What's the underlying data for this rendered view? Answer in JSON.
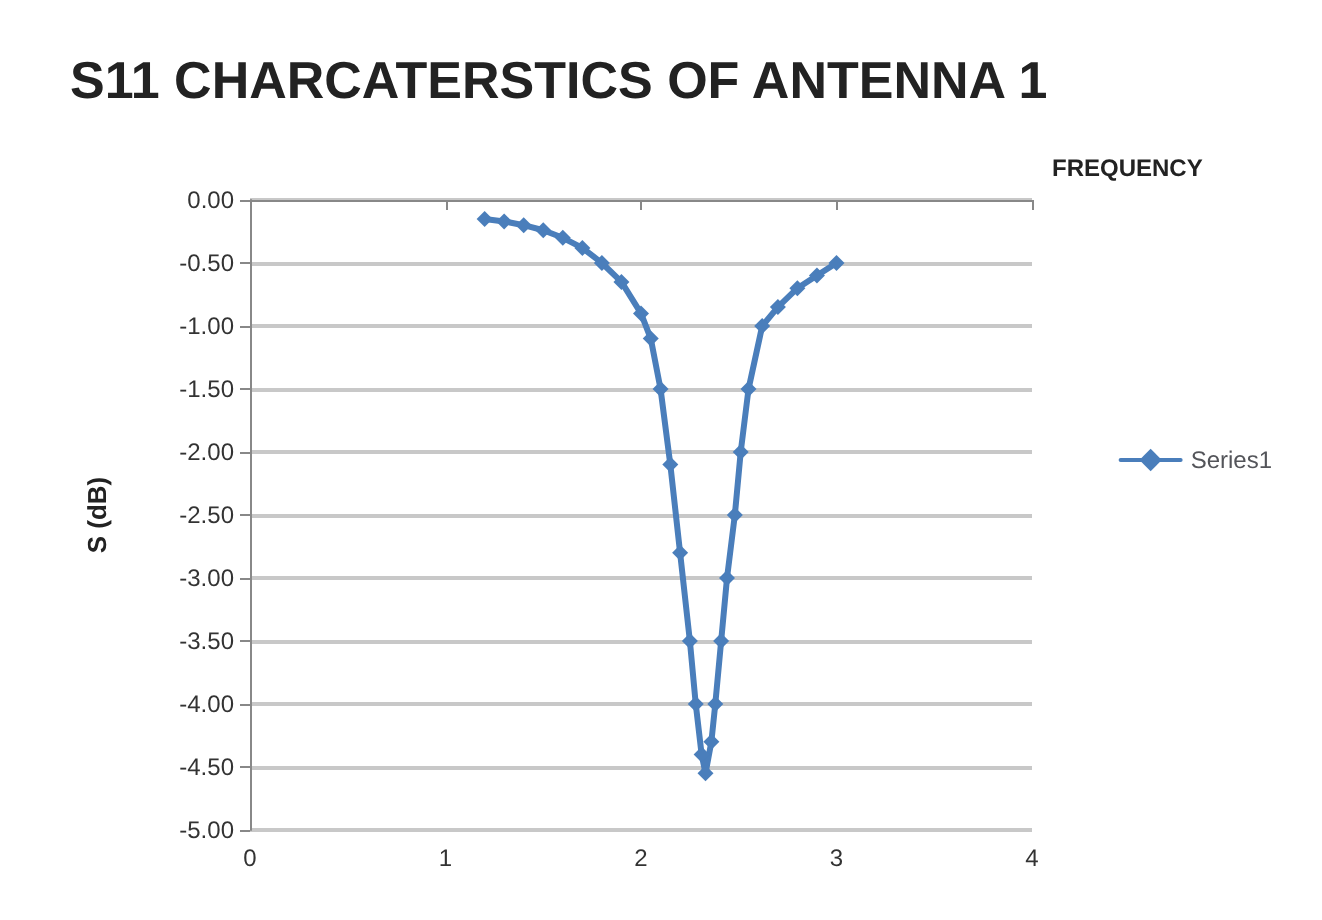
{
  "chart_data": {
    "type": "line",
    "title": "S11 CHARCATERSTICS OF ANTENNA 1",
    "xlabel": "FREQUENCY",
    "ylabel": "S (dB)",
    "series": [
      {
        "name": "Series1",
        "color": "#4a7ebb",
        "x": [
          1.2,
          1.3,
          1.4,
          1.5,
          1.6,
          1.7,
          1.8,
          1.9,
          2.0,
          2.05,
          2.1,
          2.15,
          2.2,
          2.25,
          2.28,
          2.31,
          2.33,
          2.36,
          2.38,
          2.41,
          2.44,
          2.48,
          2.51,
          2.55,
          2.62,
          2.7,
          2.8,
          2.9,
          3.0
        ],
        "values": [
          -0.15,
          -0.17,
          -0.2,
          -0.24,
          -0.3,
          -0.38,
          -0.5,
          -0.65,
          -0.9,
          -1.1,
          -1.5,
          -2.1,
          -2.8,
          -3.5,
          -4.0,
          -4.4,
          -4.55,
          -4.3,
          -4.0,
          -3.5,
          -3.0,
          -2.5,
          -2.0,
          -1.5,
          -1.0,
          -0.85,
          -0.7,
          -0.6,
          -0.5
        ]
      }
    ],
    "xlim": [
      0,
      4
    ],
    "xticks": [
      0,
      1,
      2,
      3,
      4
    ],
    "ylim": [
      -5,
      0
    ],
    "yticks": [
      {
        "value": 0,
        "label": "0.00"
      },
      {
        "value": -0.5,
        "label": "-0.50"
      },
      {
        "value": -1,
        "label": "-1.00"
      },
      {
        "value": -1.5,
        "label": "-1.50"
      },
      {
        "value": -2,
        "label": "-2.00"
      },
      {
        "value": -2.5,
        "label": "-2.50"
      },
      {
        "value": -3,
        "label": "-3.00"
      },
      {
        "value": -3.5,
        "label": "-3.50"
      },
      {
        "value": -4,
        "label": "-4.00"
      },
      {
        "value": -4.5,
        "label": "-4.50"
      },
      {
        "value": -5,
        "label": "-5.00"
      }
    ],
    "grid": "y",
    "legend": "right",
    "marker": "diamond",
    "line_style": "solid"
  }
}
